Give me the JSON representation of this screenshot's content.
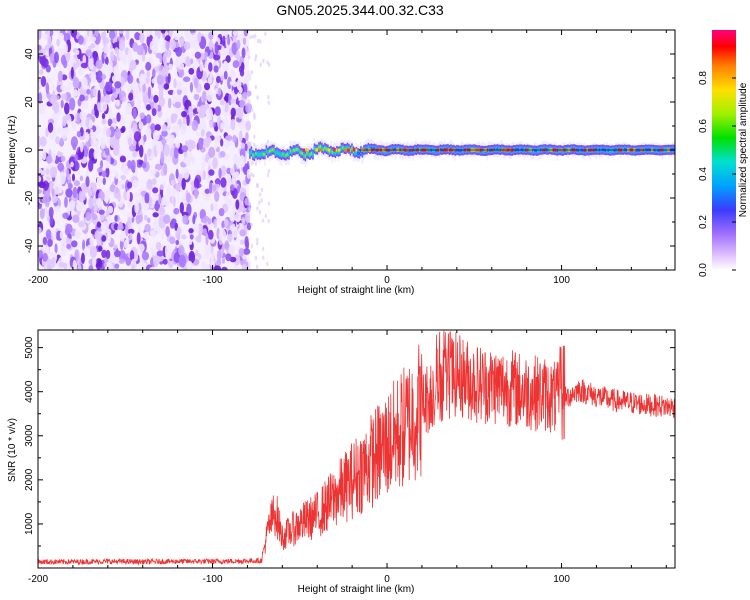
{
  "figure_title": "GN05.2025.344.00.32.C33",
  "chart_data": [
    {
      "type": "heatmap",
      "title": "GN05.2025.344.00.32.C33",
      "xlabel": "Height of straight line (km)",
      "ylabel": "Frequency (Hz)",
      "xlim": [
        -200,
        165
      ],
      "ylim": [
        -50,
        50
      ],
      "x_ticks": [
        -200,
        -100,
        0,
        100
      ],
      "x_tick_labels": [
        "-200",
        "-100",
        "0",
        "100"
      ],
      "y_ticks": [
        -40,
        -20,
        0,
        20,
        40
      ],
      "y_tick_labels": [
        "-40",
        "-20",
        "0",
        "20",
        "40"
      ],
      "noise_region_x": [
        -200,
        -79
      ],
      "signal_band_start_x": -79,
      "signal_center_freq": 0,
      "colorbar": {
        "label": "Normalized spectral amplitude",
        "range": [
          0.0,
          1.0
        ],
        "ticks": [
          0.0,
          0.2,
          0.4,
          0.6,
          0.8
        ],
        "tick_labels": [
          "0.0",
          "0.2",
          "0.4",
          "0.6",
          "0.8"
        ]
      },
      "colors": {
        "low": "#7b1fe0",
        "mid": "#00e0e0",
        "high": "#ff0000",
        "signal_line": "#303030"
      }
    },
    {
      "type": "line",
      "xlabel": "Height of straight line (km)",
      "ylabel": "SNR (10 * v/v)",
      "xlim": [
        -200,
        165
      ],
      "ylim": [
        0,
        5400
      ],
      "x_ticks": [
        -200,
        -100,
        0,
        100
      ],
      "x_tick_labels": [
        "-200",
        "-100",
        "0",
        "100"
      ],
      "y_ticks": [
        1000,
        2000,
        3000,
        4000,
        5000
      ],
      "y_tick_labels": [
        "1000",
        "2000",
        "3000",
        "4000",
        "5000"
      ],
      "line_color": "#ee3333",
      "series": [
        {
          "name": "SNR",
          "x": [
            -200,
            -180,
            -160,
            -140,
            -120,
            -100,
            -80,
            -72,
            -68,
            -64,
            -60,
            -50,
            -40,
            -30,
            -20,
            -10,
            0,
            10,
            20,
            30,
            40,
            50,
            60,
            70,
            80,
            90,
            100,
            110,
            120,
            130,
            140,
            150,
            165
          ],
          "y": [
            140,
            140,
            150,
            140,
            150,
            150,
            160,
            170,
            900,
            1300,
            700,
            1000,
            1200,
            1600,
            2000,
            2400,
            2800,
            3200,
            3700,
            4200,
            4400,
            4200,
            4150,
            4100,
            4000,
            3950,
            3800,
            4050,
            3900,
            3800,
            3750,
            3700,
            3650
          ]
        }
      ]
    }
  ]
}
